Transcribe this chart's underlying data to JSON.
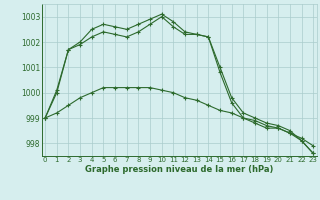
{
  "x": [
    0,
    1,
    2,
    3,
    4,
    5,
    6,
    7,
    8,
    9,
    10,
    11,
    12,
    13,
    14,
    15,
    16,
    17,
    18,
    19,
    20,
    21,
    22,
    23
  ],
  "line1": [
    999.0,
    1000.1,
    1001.7,
    1002.0,
    1002.5,
    1002.7,
    1002.6,
    1002.5,
    1002.7,
    1002.9,
    1003.1,
    1002.8,
    1002.4,
    1002.3,
    1002.2,
    1001.0,
    999.8,
    999.2,
    999.0,
    998.8,
    998.7,
    998.5,
    998.1,
    997.6
  ],
  "line2": [
    999.0,
    1000.0,
    1001.7,
    1001.9,
    1002.2,
    1002.4,
    1002.3,
    1002.2,
    1002.4,
    1002.7,
    1003.0,
    1002.6,
    1002.3,
    1002.3,
    1002.2,
    1000.8,
    999.6,
    999.0,
    998.8,
    998.6,
    998.6,
    998.4,
    998.1,
    997.6
  ],
  "line3": [
    999.0,
    999.2,
    999.5,
    999.8,
    1000.0,
    1000.2,
    1000.2,
    1000.2,
    1000.2,
    1000.2,
    1000.1,
    1000.0,
    999.8,
    999.7,
    999.5,
    999.3,
    999.2,
    999.0,
    998.9,
    998.7,
    998.6,
    998.4,
    998.2,
    997.9
  ],
  "line_color": "#2d6a2d",
  "bg_color": "#d6eeee",
  "grid_color": "#aacccc",
  "xlabel": "Graphe pression niveau de la mer (hPa)",
  "ylim": [
    997.5,
    1003.5
  ],
  "yticks": [
    998,
    999,
    1000,
    1001,
    1002,
    1003
  ],
  "xlim": [
    -0.3,
    23.3
  ],
  "xticks": [
    0,
    1,
    2,
    3,
    4,
    5,
    6,
    7,
    8,
    9,
    10,
    11,
    12,
    13,
    14,
    15,
    16,
    17,
    18,
    19,
    20,
    21,
    22,
    23
  ],
  "marker_size": 3,
  "linewidth": 0.8,
  "xlabel_fontsize": 6,
  "tick_fontsize": 5,
  "ytick_fontsize": 5.5
}
